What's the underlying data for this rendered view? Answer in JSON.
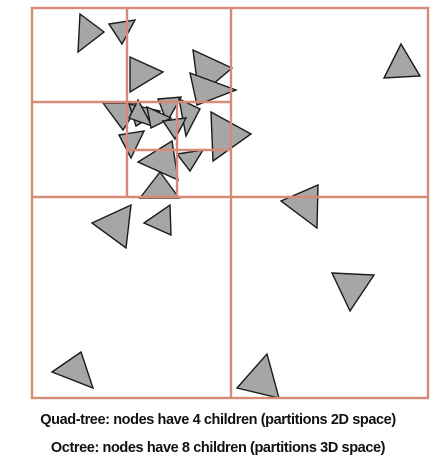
{
  "captions": {
    "quadtree": "Quad-tree: nodes have 4 children (partitions 2D space)",
    "octree": "Octree: nodes have 8 children (partitions 3D space)"
  },
  "colors": {
    "partition_lines": "#d68a78",
    "triangle_fill": "#a6a6a6",
    "triangle_stroke": "#1a1a1a"
  }
}
